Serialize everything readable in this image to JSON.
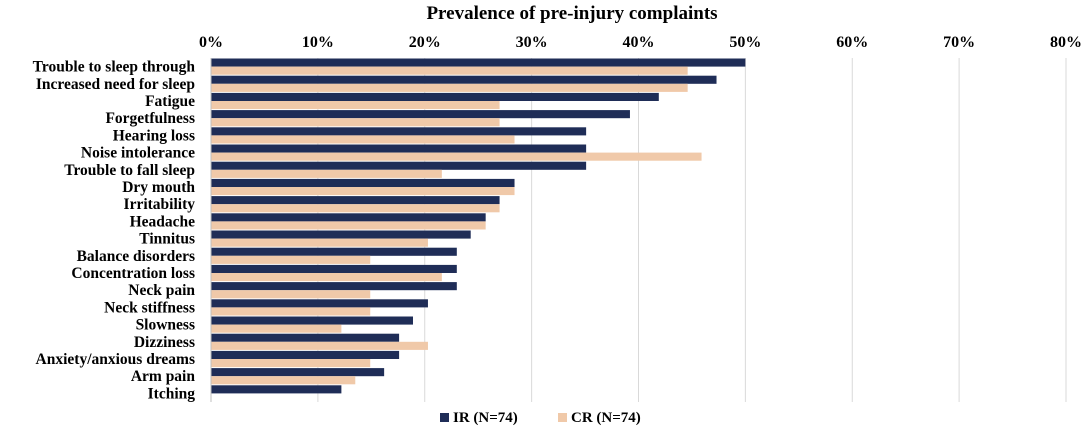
{
  "chart_data": {
    "type": "bar",
    "orientation": "horizontal",
    "title": "Prevalence of pre-injury complaints",
    "xlim": [
      0,
      80
    ],
    "x_ticks": [
      "0%",
      "10%",
      "20%",
      "30%",
      "40%",
      "50%",
      "60%",
      "70%",
      "80%"
    ],
    "x_tick_values": [
      0,
      10,
      20,
      30,
      40,
      50,
      60,
      70,
      80
    ],
    "legend_position": "bottom",
    "categories": [
      "Trouble to sleep through",
      "Increased need for sleep",
      "Fatigue",
      "Forgetfulness",
      "Hearing loss",
      "Noise intolerance",
      "Trouble to fall sleep",
      "Dry mouth",
      "Irritability",
      "Headache",
      "Tinnitus",
      "Balance disorders",
      "Concentration loss",
      "Neck pain",
      "Neck stiffness",
      "Slowness",
      "Dizziness",
      "Anxiety/anxious dreams",
      "Arm pain",
      "Itching"
    ],
    "series": [
      {
        "name": "IR (N=74)",
        "color": "#1f2d57",
        "values": [
          50.0,
          47.3,
          41.9,
          39.2,
          35.1,
          35.1,
          35.1,
          28.4,
          27.0,
          25.7,
          24.3,
          23.0,
          23.0,
          23.0,
          20.3,
          18.9,
          17.6,
          17.6,
          16.2,
          12.2
        ]
      },
      {
        "name": "CR (N=74)",
        "color": "#f0c9a9",
        "values": [
          44.6,
          44.6,
          27.0,
          27.0,
          28.4,
          45.9,
          21.6,
          28.4,
          27.0,
          25.7,
          20.3,
          14.9,
          21.6,
          14.9,
          14.9,
          12.2,
          20.3,
          14.9,
          13.5,
          0
        ]
      }
    ]
  }
}
